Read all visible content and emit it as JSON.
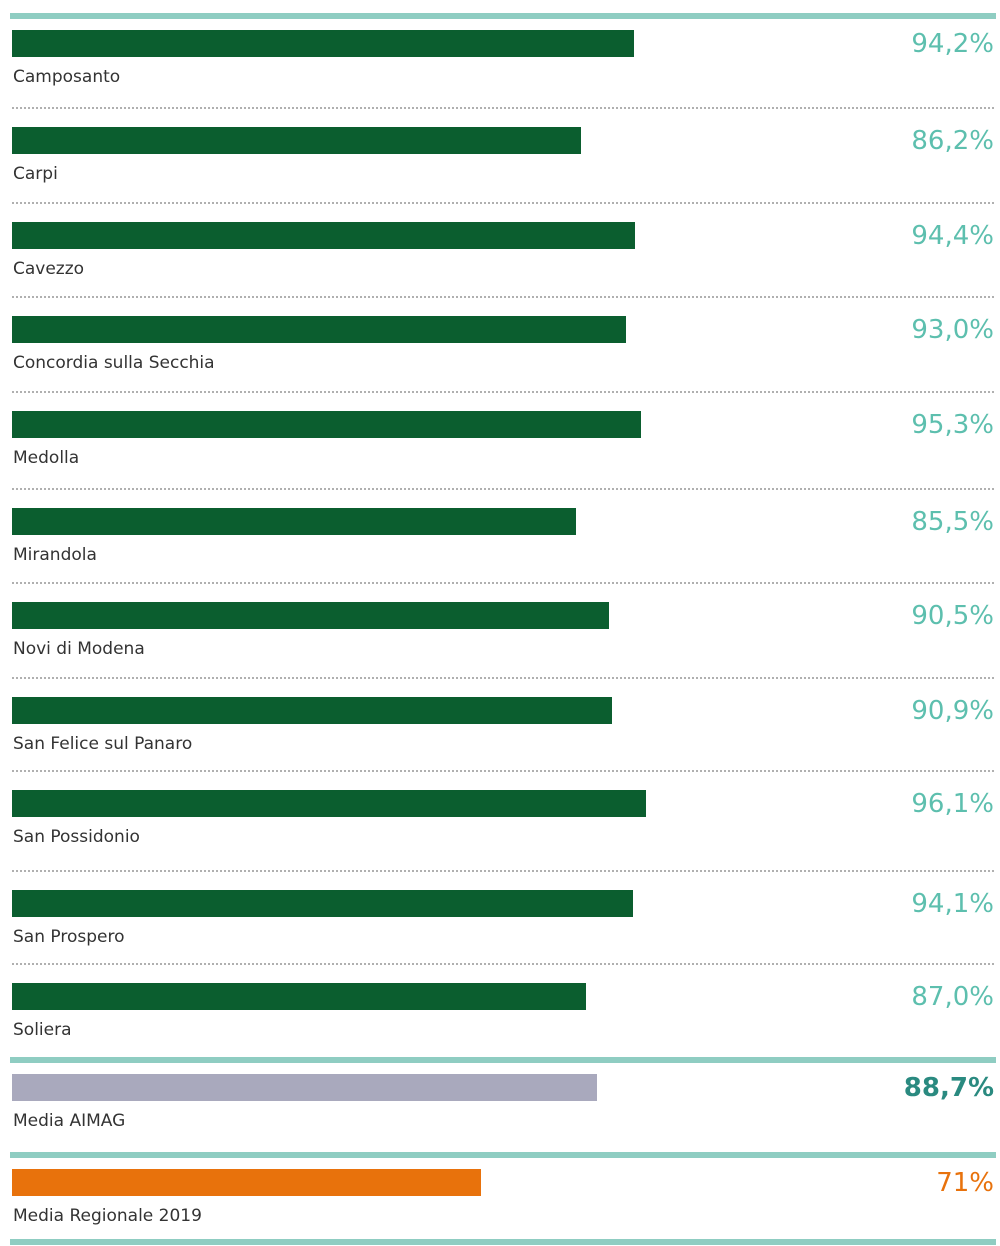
{
  "colors": {
    "bar_main": "#0b5e2f",
    "bar_aimag": "#a9a9bd",
    "bar_regional": "#e8720c",
    "value_main": "#5dbfae",
    "value_aimag": "#2a8a80",
    "value_regional": "#e8720c",
    "rule": "#8fcdc2"
  },
  "chart_data": {
    "type": "bar",
    "orientation": "horizontal",
    "xlim": [
      0,
      150
    ],
    "title": "",
    "xlabel": "",
    "ylabel": "",
    "grid": false,
    "categories": [
      "Camposanto",
      "Carpi",
      "Cavezzo",
      "Concordia sulla Secchia",
      "Medolla",
      "Mirandola",
      "Novi di Modena",
      "San Felice sul Panaro",
      "San Possidonio",
      "San Prospero",
      "Soliera",
      "Media AIMAG",
      "Media Regionale 2019"
    ],
    "values": [
      94.2,
      86.2,
      94.4,
      93.0,
      95.3,
      85.5,
      90.5,
      90.9,
      96.1,
      94.1,
      87.0,
      88.7,
      71
    ],
    "value_labels": [
      "94,2%",
      "86,2%",
      "94,4%",
      "93,0%",
      "95,3%",
      "85,5%",
      "90,5%",
      "90,9%",
      "96,1%",
      "94,1%",
      "87,0%",
      "88,7%",
      "71%"
    ],
    "bar_groups": [
      "comune",
      "comune",
      "comune",
      "comune",
      "comune",
      "comune",
      "comune",
      "comune",
      "comune",
      "comune",
      "comune",
      "aimag",
      "regional"
    ]
  }
}
